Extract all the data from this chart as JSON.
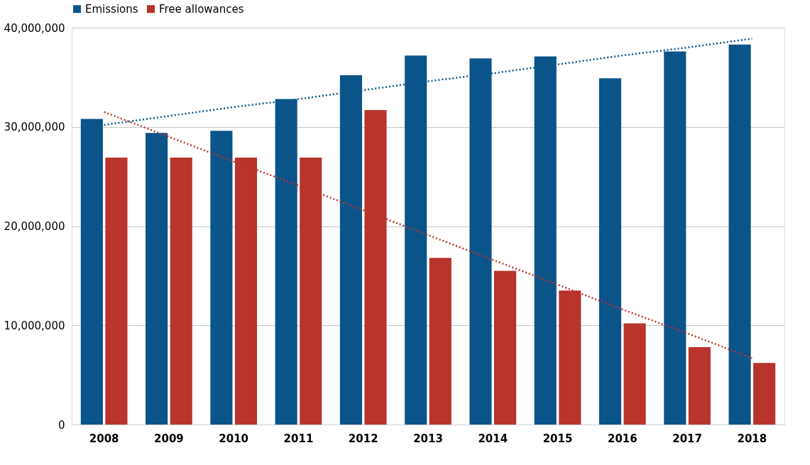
{
  "chart_data": {
    "type": "bar",
    "categories": [
      "2008",
      "2009",
      "2010",
      "2011",
      "2012",
      "2013",
      "2014",
      "2015",
      "2016",
      "2017",
      "2018"
    ],
    "series": [
      {
        "name": "Emissions",
        "color": "#0b5489",
        "values": [
          30800000,
          29400000,
          29600000,
          32800000,
          35200000,
          37200000,
          36900000,
          37100000,
          34900000,
          37600000,
          38300000
        ]
      },
      {
        "name": "Free allowances",
        "color": "#b8342c",
        "values": [
          26900000,
          26900000,
          26900000,
          26900000,
          31700000,
          16800000,
          15500000,
          13500000,
          10200000,
          7800000,
          6200000
        ]
      },
      {
        "type": "line",
        "color": "#0b5489",
        "line_style": "dotted",
        "values": [
          30200000,
          31100000,
          32000000,
          32800000,
          33700000,
          34600000,
          35400000,
          36300000,
          37200000,
          38000000,
          38900000
        ]
      },
      {
        "type": "line",
        "color": "#b8342c",
        "line_style": "dotted",
        "values": [
          31500000,
          29000000,
          26500000,
          24100000,
          21600000,
          19100000,
          16600000,
          14100000,
          11600000,
          9200000,
          6700000
        ]
      }
    ],
    "ylim": [
      0,
      40000000
    ],
    "yticks": [
      {
        "value": 0,
        "label": "0"
      },
      {
        "value": 10000000,
        "label": "10,000,000"
      },
      {
        "value": 20000000,
        "label": "20,000,000"
      },
      {
        "value": 30000000,
        "label": "30,000,000"
      },
      {
        "value": 40000000,
        "label": "40,000,000"
      }
    ],
    "grid": "y",
    "legend": "top"
  }
}
